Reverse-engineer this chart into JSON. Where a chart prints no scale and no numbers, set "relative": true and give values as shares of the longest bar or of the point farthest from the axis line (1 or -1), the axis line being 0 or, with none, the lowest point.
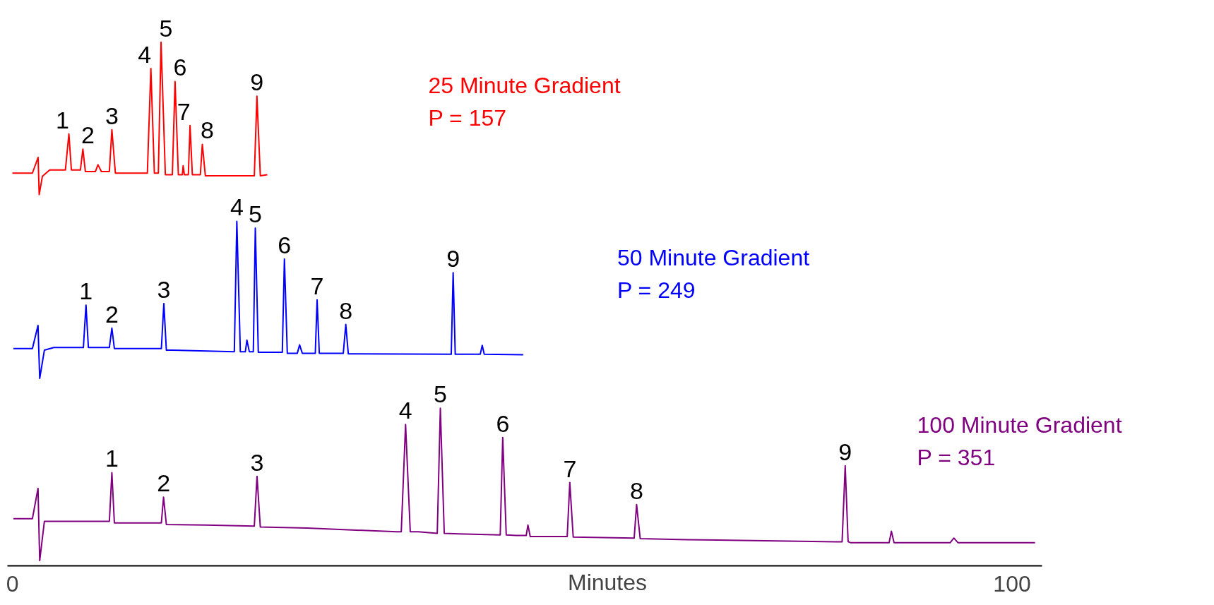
{
  "chart_data": {
    "type": "line",
    "relative": true,
    "xlim": [
      -0.5,
      103
    ],
    "xticks": [
      0,
      100
    ],
    "xlabel": "Minutes",
    "tick_labels": "x",
    "series": [
      {
        "name": "25 Minute Gradient",
        "color": "#ff0000",
        "x": [
          0.0,
          2.0,
          2.57,
          2.68,
          3.0,
          3.73,
          5.3,
          5.65,
          5.9,
          6.8,
          7.05,
          7.3,
          8.3,
          8.56,
          8.9,
          9.7,
          9.95,
          10.3,
          13.5,
          13.85,
          14.2,
          14.6,
          14.87,
          15.3,
          16.0,
          16.27,
          16.6,
          17.0,
          17.08,
          17.2,
          17.6,
          17.77,
          18.0,
          18.8,
          19.0,
          19.3,
          24.2,
          24.46,
          24.8,
          25.5
        ],
        "values": [
          0.75,
          0.75,
          0.78,
          0.709,
          0.744,
          0.756,
          0.756,
          0.825,
          0.756,
          0.756,
          0.796,
          0.753,
          0.753,
          0.766,
          0.753,
          0.753,
          0.833,
          0.75,
          0.75,
          0.95,
          0.75,
          0.75,
          1.0,
          0.747,
          0.747,
          0.925,
          0.747,
          0.747,
          0.764,
          0.747,
          0.747,
          0.841,
          0.747,
          0.747,
          0.805,
          0.745,
          0.745,
          0.897,
          0.745,
          0.747
        ]
      },
      {
        "name": "50 Minute Gradient",
        "color": "#0000ff",
        "x": [
          0.1,
          2.0,
          2.56,
          2.73,
          3.2,
          4.15,
          7.1,
          7.36,
          7.6,
          9.7,
          9.95,
          10.2,
          14.9,
          15.15,
          15.4,
          15.96,
          22.2,
          22.45,
          22.8,
          23.3,
          23.46,
          23.7,
          24.1,
          24.3,
          24.6,
          27.0,
          27.21,
          27.5,
          28.5,
          28.73,
          29.0,
          30.3,
          30.48,
          30.7,
          33.1,
          33.35,
          33.6,
          43.9,
          44.09,
          44.3,
          46.8,
          47.0,
          47.2,
          51.1
        ],
        "values": [
          0.415,
          0.415,
          0.459,
          0.358,
          0.412,
          0.417,
          0.417,
          0.498,
          0.417,
          0.417,
          0.454,
          0.415,
          0.415,
          0.501,
          0.412,
          0.412,
          0.409,
          0.658,
          0.409,
          0.409,
          0.431,
          0.409,
          0.409,
          0.645,
          0.408,
          0.408,
          0.586,
          0.406,
          0.406,
          0.422,
          0.406,
          0.406,
          0.508,
          0.406,
          0.406,
          0.461,
          0.405,
          0.404,
          0.56,
          0.404,
          0.404,
          0.421,
          0.404,
          0.403
        ]
      },
      {
        "name": "100 Minute Gradient",
        "color": "#800080",
        "x": [
          0.1,
          2.0,
          2.56,
          2.73,
          3.2,
          3.81,
          9.7,
          9.95,
          10.2,
          14.9,
          15.12,
          15.4,
          19.34,
          24.2,
          24.47,
          24.8,
          29.47,
          38.42,
          38.9,
          39.33,
          39.8,
          40.6,
          42.5,
          42.81,
          43.2,
          44.66,
          48.8,
          49.05,
          49.4,
          50.4,
          51.4,
          51.57,
          51.8,
          52.65,
          55.5,
          55.76,
          56.1,
          62.2,
          62.44,
          62.8,
          67.5,
          82.36,
          83.0,
          83.31,
          83.6,
          83.89,
          87.7,
          87.93,
          88.2,
          88.44,
          93.8,
          94.18,
          94.6,
          102.3
        ],
        "values": [
          0.09,
          0.09,
          0.148,
          0.01,
          0.085,
          0.085,
          0.085,
          0.178,
          0.082,
          0.082,
          0.131,
          0.079,
          0.078,
          0.076,
          0.171,
          0.074,
          0.072,
          0.065,
          0.065,
          0.27,
          0.065,
          0.065,
          0.062,
          0.301,
          0.062,
          0.061,
          0.059,
          0.245,
          0.059,
          0.058,
          0.058,
          0.078,
          0.056,
          0.056,
          0.056,
          0.159,
          0.055,
          0.053,
          0.117,
          0.052,
          0.05,
          0.046,
          0.046,
          0.191,
          0.046,
          0.044,
          0.044,
          0.066,
          0.044,
          0.044,
          0.044,
          0.053,
          0.044,
          0.044
        ]
      }
    ],
    "annotations": [
      {
        "text": "1",
        "x": 5.65,
        "y": 0.825
      },
      {
        "text": "2",
        "x": 7.05,
        "y": 0.796
      },
      {
        "text": "3",
        "x": 9.95,
        "y": 0.833
      },
      {
        "text": "4",
        "x": 13.85,
        "y": 0.95
      },
      {
        "text": "5",
        "x": 14.87,
        "y": 1.0
      },
      {
        "text": "6",
        "x": 16.27,
        "y": 0.925
      },
      {
        "text": "7",
        "x": 17.77,
        "y": 0.841
      },
      {
        "text": "8",
        "x": 19.0,
        "y": 0.805
      },
      {
        "text": "9",
        "x": 24.46,
        "y": 0.897
      },
      {
        "text": "1",
        "x": 7.36,
        "y": 0.498
      },
      {
        "text": "2",
        "x": 9.95,
        "y": 0.454
      },
      {
        "text": "3",
        "x": 15.15,
        "y": 0.501
      },
      {
        "text": "4",
        "x": 22.45,
        "y": 0.658
      },
      {
        "text": "5",
        "x": 24.3,
        "y": 0.645
      },
      {
        "text": "6",
        "x": 27.21,
        "y": 0.586
      },
      {
        "text": "7",
        "x": 30.48,
        "y": 0.508
      },
      {
        "text": "8",
        "x": 33.35,
        "y": 0.461
      },
      {
        "text": "9",
        "x": 44.09,
        "y": 0.56
      },
      {
        "text": "1",
        "x": 9.95,
        "y": 0.178
      },
      {
        "text": "2",
        "x": 15.12,
        "y": 0.131
      },
      {
        "text": "3",
        "x": 24.47,
        "y": 0.171
      },
      {
        "text": "4",
        "x": 39.33,
        "y": 0.27
      },
      {
        "text": "5",
        "x": 42.81,
        "y": 0.301
      },
      {
        "text": "6",
        "x": 49.05,
        "y": 0.245
      },
      {
        "text": "7",
        "x": 55.76,
        "y": 0.159
      },
      {
        "text": "8",
        "x": 62.44,
        "y": 0.117
      },
      {
        "text": "9",
        "x": 83.31,
        "y": 0.191
      },
      "P = 157",
      "P = 249",
      "P = 351"
    ]
  }
}
